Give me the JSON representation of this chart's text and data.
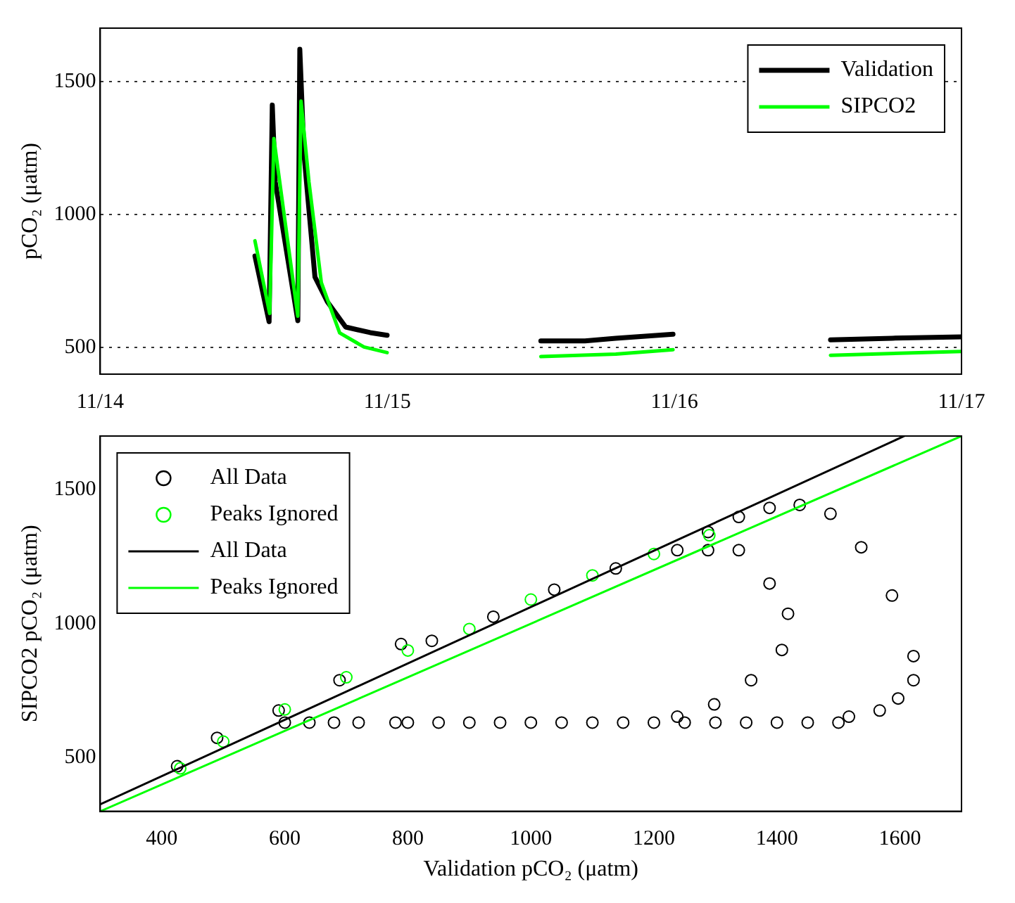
{
  "chart_data": [
    {
      "type": "line",
      "ylabel": "pCO₂ (μatm)",
      "xlim": [
        "--11-14",
        "--11-17"
      ],
      "xticks": [
        {
          "value": "--11-14",
          "label": "11/14"
        },
        {
          "value": "--11-15",
          "label": "11/15"
        },
        {
          "value": "--11-16",
          "label": "11/16"
        },
        {
          "value": "--11-17",
          "label": "11/17"
        }
      ],
      "ylim": [
        400,
        1700
      ],
      "yticks": [
        500,
        1000,
        1500
      ],
      "grid": "y",
      "legend": "top right",
      "series": [
        {
          "name": "Validation",
          "color": "#000000",
          "x": [
            "--11-14T12:56",
            "--11-14T14:07",
            "--11-14T14:23",
            "--11-14T14:38",
            "--11-14T16:31",
            "--11-14T16:41",
            "--11-14T17:02",
            "--11-14T17:57",
            "--11-14T18:59",
            "--11-14T20:31",
            "--11-14T22:34",
            "--11-14T23:59",
            "--11-15T04:48",
            "--11-15T12:50",
            "--11-15T16:32",
            "--11-15T19:06",
            "--11-15T23:53",
            "--11-16T04:48",
            "--11-16T13:03",
            "--11-16T18:12",
            "--11-17"
          ],
          "values": [
            844,
            597,
            1411,
            1122,
            601,
            1621,
            1227,
            765,
            672,
            577,
            556,
            546,
            null,
            525,
            525,
            535,
            550,
            null,
            529,
            535,
            540
          ]
        },
        {
          "name": "SIPCO2",
          "color": "#00ff00",
          "x": [
            "--11-14T12:56",
            "--11-14T14:10",
            "--11-14T14:31",
            "--11-14T16:31",
            "--11-14T16:47",
            "--11-14T17:27",
            "--11-14T18:29",
            "--11-14T20:01",
            "--11-14T22:03",
            "--11-14T23:59",
            "--11-15T04:48",
            "--11-15T12:50",
            "--11-15T19:06",
            "--11-15T23:53",
            "--11-16T04:48",
            "--11-16T13:03",
            "--11-17"
          ],
          "values": [
            901,
            628,
            1285,
            618,
            1426,
            1122,
            744,
            555,
            502,
            481,
            null,
            466,
            475,
            492,
            null,
            471,
            485
          ]
        }
      ]
    },
    {
      "type": "scatter",
      "xlabel": "Validation pCO₂ (μatm)",
      "ylabel": "SIPCO2 pCO₂ (μatm)",
      "xlim": [
        300,
        1700
      ],
      "xticks": [
        400,
        600,
        800,
        1000,
        1200,
        1400,
        1600
      ],
      "ylim": [
        300,
        1700
      ],
      "yticks": [
        500,
        1000,
        1500
      ],
      "legend": "top left",
      "series": [
        {
          "name": "All Data",
          "color": "#000000",
          "marker": "circle",
          "x": [
            425,
            490,
            590,
            689,
            789,
            839,
            939,
            1038,
            1138,
            1238,
            1288,
            1338,
            1388,
            1437,
            1487,
            1537,
            1587,
            1622,
            1622,
            1597,
            1567,
            1517,
            1500,
            1450,
            1400,
            1350,
            1300,
            1250,
            1200,
            1150,
            1100,
            1050,
            1000,
            950,
            900,
            850,
            800,
            780,
            720,
            680,
            640,
            600,
            1288,
            1338,
            1388,
            1418,
            1408,
            1358,
            1298,
            1238
          ],
          "values": [
            468,
            574,
            676,
            789,
            924,
            936,
            1026,
            1127,
            1206,
            1274,
            1342,
            1398,
            1432,
            1443,
            1410,
            1285,
            1105,
            879,
            789,
            721,
            676,
            653,
            631,
            631,
            631,
            631,
            631,
            631,
            631,
            631,
            631,
            631,
            631,
            631,
            631,
            631,
            631,
            631,
            631,
            631,
            631,
            631,
            1274,
            1274,
            1150,
            1037,
            902,
            789,
            699,
            653
          ]
        },
        {
          "name": "Peaks Ignored",
          "color": "#00ff00",
          "marker": "circle",
          "x": [
            430,
            500,
            600,
            700,
            800,
            900,
            1000,
            1100,
            1200,
            1290
          ],
          "values": [
            460,
            560,
            680,
            800,
            900,
            980,
            1090,
            1180,
            1260,
            1330
          ]
        },
        {
          "name": "All Data",
          "type": "line",
          "color": "#000000",
          "marker": "none",
          "x": [
            300,
            1607
          ],
          "values": [
            326,
            1700
          ]
        },
        {
          "name": "Peaks Ignored",
          "type": "line",
          "color": "#00ff00",
          "marker": "none",
          "x": [
            300,
            1700
          ],
          "values": [
            300,
            1700
          ]
        }
      ]
    }
  ]
}
